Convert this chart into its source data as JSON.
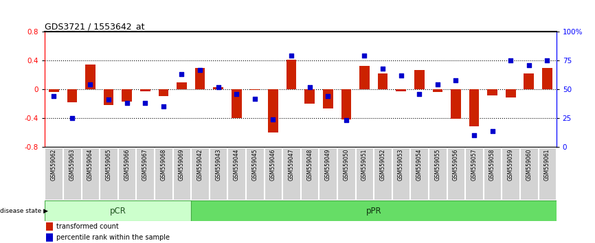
{
  "title": "GDS3721 / 1553642_at",
  "samples": [
    "GSM559062",
    "GSM559063",
    "GSM559064",
    "GSM559065",
    "GSM559066",
    "GSM559067",
    "GSM559068",
    "GSM559069",
    "GSM559042",
    "GSM559043",
    "GSM559044",
    "GSM559045",
    "GSM559046",
    "GSM559047",
    "GSM559048",
    "GSM559049",
    "GSM559050",
    "GSM559051",
    "GSM559052",
    "GSM559053",
    "GSM559054",
    "GSM559055",
    "GSM559056",
    "GSM559057",
    "GSM559058",
    "GSM559059",
    "GSM559060",
    "GSM559061"
  ],
  "red_bars": [
    -0.04,
    -0.18,
    0.34,
    -0.22,
    -0.17,
    -0.03,
    -0.09,
    0.1,
    0.3,
    0.03,
    -0.4,
    -0.01,
    -0.6,
    0.41,
    -0.2,
    -0.27,
    -0.42,
    0.32,
    0.22,
    -0.03,
    0.27,
    -0.04,
    -0.41,
    -0.51,
    -0.08,
    -0.11,
    0.22,
    0.3
  ],
  "blue_dots": [
    44,
    25,
    54,
    41,
    38,
    38,
    35,
    63,
    67,
    52,
    46,
    42,
    24,
    79,
    52,
    44,
    23,
    79,
    68,
    62,
    46,
    54,
    58,
    10,
    14,
    75,
    71,
    75
  ],
  "pCR_count": 8,
  "pPR_count": 20,
  "ylim_left": [
    -0.8,
    0.8
  ],
  "ylim_right": [
    0,
    100
  ],
  "yticks_left": [
    -0.8,
    -0.4,
    0.0,
    0.4,
    0.8
  ],
  "yticks_right": [
    0,
    25,
    50,
    75,
    100
  ],
  "ytick_labels_right": [
    "0",
    "25",
    "50",
    "75",
    "100%"
  ],
  "pCR_color": "#ccffcc",
  "pPR_color": "#66dd66",
  "bar_color": "#cc2200",
  "dot_color": "#0000cc",
  "hline_color": "#cc0000"
}
